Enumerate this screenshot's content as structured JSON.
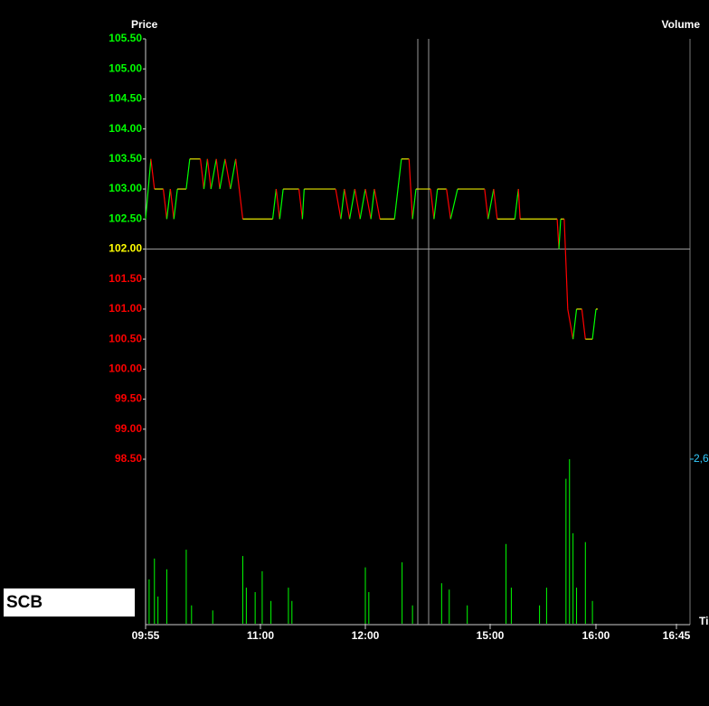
{
  "chart_data": {
    "type": "stock",
    "symbol": "SCB",
    "price_label": "Price",
    "volume_label": "Volume",
    "time_label": "Ti",
    "ylim": [
      95.76,
      105.5
    ],
    "yticks": [
      {
        "value": 105.5,
        "label": "105.50"
      },
      {
        "value": 105,
        "label": "105.00"
      },
      {
        "value": 104.5,
        "label": "104.50"
      },
      {
        "value": 104,
        "label": "104.00"
      },
      {
        "value": 103.5,
        "label": "103.50"
      },
      {
        "value": 103,
        "label": "103.00"
      },
      {
        "value": 102.5,
        "label": "102.50"
      },
      {
        "value": 102,
        "label": "102.00"
      },
      {
        "value": 101.5,
        "label": "101.50"
      },
      {
        "value": 101,
        "label": "101.00"
      },
      {
        "value": 100.5,
        "label": "100.50"
      },
      {
        "value": 100,
        "label": "100.00"
      },
      {
        "value": 99.5,
        "label": "99.50"
      },
      {
        "value": 99,
        "label": "99.00"
      },
      {
        "value": 98.5,
        "label": "98.50"
      }
    ],
    "reference": 102,
    "up_color": "#00ff00",
    "down_color": "#ff0000",
    "flat_color": "#e6e600",
    "ref_color": "#ffff00",
    "y2lim": [
      0,
      9240
    ],
    "y2ticks": [
      {
        "value": 2600,
        "label": "2,6"
      }
    ],
    "y2tick_color": "#33ccff",
    "xticks": [
      "09:55",
      "11:00",
      "12:00",
      "15:00",
      "16:00",
      "16:45"
    ],
    "price": {
      "x": [
        "09:55",
        "09:58",
        "10:00",
        "10:05",
        "10:07",
        "10:09",
        "10:11",
        "10:13",
        "10:18",
        "10:20",
        "10:26",
        "10:28",
        "10:30",
        "10:32",
        "10:35",
        "10:37",
        "10:40",
        "10:43",
        "10:46",
        "10:48",
        "10:50",
        "11:07",
        "11:09",
        "11:11",
        "11:13",
        "11:22",
        "11:24",
        "11:25",
        "11:43",
        "11:46",
        "11:48",
        "11:51",
        "11:54",
        "11:57",
        "12:00",
        "12:08",
        "12:13",
        "12:21",
        "12:42",
        "12:47",
        "12:52",
        "13:03",
        "13:08",
        "13:13",
        "13:34",
        "13:39",
        "13:44",
        "13:57",
        "14:03",
        "14:13",
        "14:52",
        "14:57",
        "15:02",
        "15:04",
        "15:14",
        "15:16",
        "15:17",
        "15:38",
        "15:39",
        "15:40",
        "15:42",
        "15:44",
        "15:47",
        "15:49",
        "15:52",
        "15:54",
        "15:58",
        "16:00",
        "16:01"
      ],
      "values": [
        102.5,
        103.5,
        103,
        103,
        102.5,
        103,
        102.5,
        103,
        103,
        103.5,
        103.5,
        103,
        103.5,
        103,
        103.5,
        103,
        103.5,
        103,
        103.5,
        103,
        102.5,
        102.5,
        103,
        102.5,
        103,
        103,
        102.5,
        103,
        103,
        102.5,
        103,
        102.5,
        103,
        102.5,
        103,
        102.5,
        103,
        102.5,
        102.5,
        103,
        103.5,
        103.5,
        102.5,
        103,
        103,
        102.5,
        103,
        103,
        102.5,
        103,
        103,
        102.5,
        103,
        102.5,
        102.5,
        103,
        102.5,
        102.5,
        102,
        102.5,
        102.5,
        101,
        100.5,
        101,
        101,
        100.5,
        100.5,
        101,
        101
      ]
    },
    "volume": {
      "color": "#00ff00",
      "x": [
        "09:57",
        "10:00",
        "10:02",
        "10:07",
        "10:18",
        "10:21",
        "10:33",
        "10:50",
        "10:52",
        "10:57",
        "11:01",
        "11:06",
        "11:16",
        "11:18",
        "12:00",
        "12:05",
        "12:53",
        "13:08",
        "13:50",
        "14:01",
        "14:27",
        "15:09",
        "15:12",
        "15:28",
        "15:32",
        "15:43",
        "15:45",
        "15:47",
        "15:49",
        "15:54",
        "15:58"
      ],
      "values": [
        700,
        1030,
        430,
        860,
        1170,
        290,
        210,
        1070,
        570,
        500,
        830,
        360,
        570,
        360,
        890,
        500,
        970,
        290,
        640,
        540,
        290,
        1260,
        570,
        290,
        570,
        2290,
        2600,
        1430,
        570,
        1290,
        360
      ]
    }
  }
}
